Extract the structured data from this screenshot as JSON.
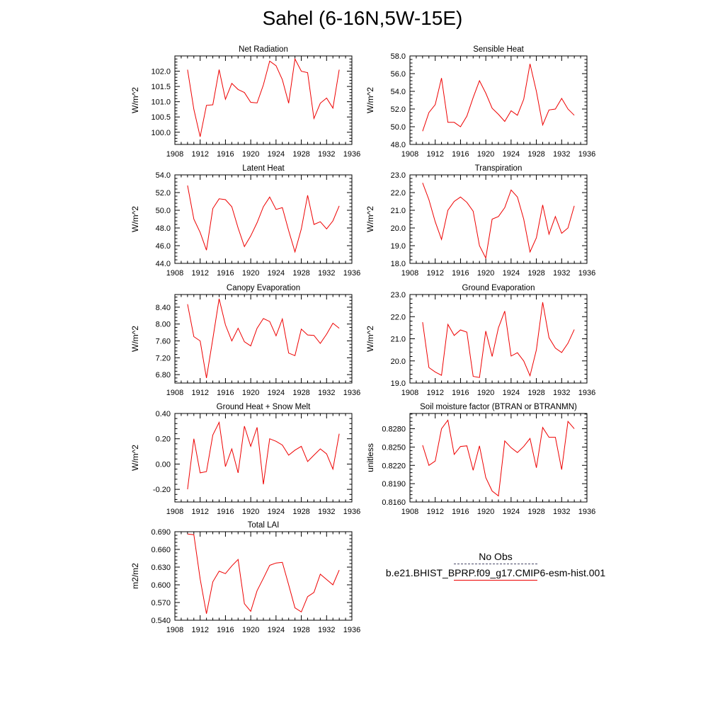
{
  "figure": {
    "title": "Sahel (6-16N,5W-15E)"
  },
  "legend": {
    "obs_label": "No Obs",
    "model_label": "b.e21.BHIST_BPRP.f09_g17.CMIP6-esm-hist.001",
    "model_color": "#ee0000"
  },
  "chart_data": [
    {
      "type": "line",
      "title": "Net Radiation",
      "ylabel": "W/m^2",
      "xlim": [
        1908,
        1936
      ],
      "ylim": [
        99.6,
        102.5
      ],
      "xticks": [
        1908,
        1912,
        1916,
        1920,
        1924,
        1928,
        1932,
        1936
      ],
      "yticks": [
        100.0,
        100.5,
        101.0,
        101.5,
        102.0
      ],
      "ytick_labels": [
        "100.0",
        "100.5",
        "101.0",
        "101.5",
        "102.0"
      ],
      "series": [
        {
          "x": [
            1910,
            1911,
            1912,
            1913,
            1914,
            1915,
            1916,
            1917,
            1918,
            1919,
            1920,
            1921,
            1922,
            1923,
            1924,
            1925,
            1926,
            1927,
            1928,
            1929,
            1930,
            1931,
            1932,
            1933,
            1934
          ],
          "y": [
            102.05,
            100.75,
            99.85,
            100.88,
            100.9,
            102.05,
            101.08,
            101.6,
            101.4,
            101.3,
            100.98,
            100.96,
            101.55,
            102.33,
            102.18,
            101.72,
            100.95,
            102.4,
            102.0,
            101.95,
            100.45,
            100.95,
            101.12,
            100.79,
            102.05
          ]
        }
      ]
    },
    {
      "type": "line",
      "title": "Sensible Heat",
      "ylabel": "W/m^2",
      "xlim": [
        1908,
        1936
      ],
      "ylim": [
        48.0,
        58.0
      ],
      "xticks": [
        1908,
        1912,
        1916,
        1920,
        1924,
        1928,
        1932,
        1936
      ],
      "yticks": [
        48.0,
        50.0,
        52.0,
        54.0,
        56.0,
        58.0
      ],
      "ytick_labels": [
        "48.0",
        "50.0",
        "52.0",
        "54.0",
        "56.0",
        "58.0"
      ],
      "series": [
        {
          "x": [
            1910,
            1911,
            1912,
            1913,
            1914,
            1915,
            1916,
            1917,
            1918,
            1919,
            1920,
            1921,
            1922,
            1923,
            1924,
            1925,
            1926,
            1927,
            1928,
            1929,
            1930,
            1931,
            1932,
            1933,
            1934
          ],
          "y": [
            49.5,
            51.6,
            52.5,
            55.5,
            50.5,
            50.5,
            50.0,
            51.2,
            53.3,
            55.2,
            53.8,
            52.1,
            51.4,
            50.6,
            51.8,
            51.3,
            53.1,
            57.1,
            54.0,
            50.2,
            51.9,
            52.0,
            53.2,
            52.0,
            51.3
          ]
        }
      ]
    },
    {
      "type": "line",
      "title": "Latent Heat",
      "ylabel": "W/m^2",
      "xlim": [
        1908,
        1936
      ],
      "ylim": [
        44.0,
        54.0
      ],
      "xticks": [
        1908,
        1912,
        1916,
        1920,
        1924,
        1928,
        1932,
        1936
      ],
      "yticks": [
        44.0,
        46.0,
        48.0,
        50.0,
        52.0,
        54.0
      ],
      "ytick_labels": [
        "44.0",
        "46.0",
        "48.0",
        "50.0",
        "52.0",
        "54.0"
      ],
      "series": [
        {
          "x": [
            1910,
            1911,
            1912,
            1913,
            1914,
            1915,
            1916,
            1917,
            1918,
            1919,
            1920,
            1921,
            1922,
            1923,
            1924,
            1925,
            1926,
            1927,
            1928,
            1929,
            1930,
            1931,
            1932,
            1933,
            1934
          ],
          "y": [
            52.8,
            49.0,
            47.5,
            45.5,
            50.2,
            51.3,
            51.2,
            50.4,
            48.0,
            45.9,
            47.1,
            48.6,
            50.4,
            51.5,
            50.1,
            50.3,
            47.7,
            45.3,
            47.9,
            51.7,
            48.4,
            48.7,
            47.9,
            48.8,
            50.5
          ]
        }
      ]
    },
    {
      "type": "line",
      "title": "Transpiration",
      "ylabel": "W/m^2",
      "xlim": [
        1908,
        1936
      ],
      "ylim": [
        18.0,
        23.0
      ],
      "xticks": [
        1908,
        1912,
        1916,
        1920,
        1924,
        1928,
        1932,
        1936
      ],
      "yticks": [
        18.0,
        19.0,
        20.0,
        21.0,
        22.0,
        23.0
      ],
      "ytick_labels": [
        "18.0",
        "19.0",
        "20.0",
        "21.0",
        "22.0",
        "23.0"
      ],
      "series": [
        {
          "x": [
            1910,
            1911,
            1912,
            1913,
            1914,
            1915,
            1916,
            1917,
            1918,
            1919,
            1920,
            1921,
            1922,
            1923,
            1924,
            1925,
            1926,
            1927,
            1928,
            1929,
            1930,
            1931,
            1932,
            1933,
            1934
          ],
          "y": [
            22.55,
            21.6,
            20.35,
            19.35,
            21.0,
            21.5,
            21.75,
            21.45,
            20.95,
            19.0,
            18.3,
            20.5,
            20.65,
            21.15,
            22.15,
            21.75,
            20.5,
            18.65,
            19.45,
            21.3,
            19.65,
            20.65,
            19.7,
            20.0,
            21.25
          ]
        }
      ]
    },
    {
      "type": "line",
      "title": "Canopy Evaporation",
      "ylabel": "W/m^2",
      "xlim": [
        1908,
        1936
      ],
      "ylim": [
        6.6,
        8.7
      ],
      "xticks": [
        1908,
        1912,
        1916,
        1920,
        1924,
        1928,
        1932,
        1936
      ],
      "yticks": [
        6.8,
        7.2,
        7.6,
        8.0,
        8.4
      ],
      "ytick_labels": [
        "6.80",
        "7.20",
        "7.60",
        "8.00",
        "8.40"
      ],
      "series": [
        {
          "x": [
            1910,
            1911,
            1912,
            1913,
            1914,
            1915,
            1916,
            1917,
            1918,
            1919,
            1920,
            1921,
            1922,
            1923,
            1924,
            1925,
            1926,
            1927,
            1928,
            1929,
            1930,
            1931,
            1932,
            1933,
            1934
          ],
          "y": [
            8.47,
            7.7,
            7.6,
            6.72,
            7.65,
            8.6,
            7.98,
            7.6,
            7.9,
            7.58,
            7.48,
            7.9,
            8.13,
            8.06,
            7.72,
            8.12,
            7.31,
            7.25,
            7.88,
            7.74,
            7.73,
            7.54,
            7.76,
            8.02,
            7.9
          ]
        }
      ]
    },
    {
      "type": "line",
      "title": "Ground Evaporation",
      "ylabel": "W/m^2",
      "xlim": [
        1908,
        1936
      ],
      "ylim": [
        19.0,
        23.0
      ],
      "xticks": [
        1908,
        1912,
        1916,
        1920,
        1924,
        1928,
        1932,
        1936
      ],
      "yticks": [
        19.0,
        20.0,
        21.0,
        22.0,
        23.0
      ],
      "ytick_labels": [
        "19.0",
        "20.0",
        "21.0",
        "22.0",
        "23.0"
      ],
      "series": [
        {
          "x": [
            1910,
            1911,
            1912,
            1913,
            1914,
            1915,
            1916,
            1917,
            1918,
            1919,
            1920,
            1921,
            1922,
            1923,
            1924,
            1925,
            1926,
            1927,
            1928,
            1929,
            1930,
            1931,
            1932,
            1933,
            1934
          ],
          "y": [
            21.75,
            19.7,
            19.5,
            19.35,
            21.65,
            21.15,
            21.4,
            21.3,
            19.3,
            19.25,
            21.35,
            20.2,
            21.5,
            22.25,
            20.22,
            20.37,
            20.0,
            19.33,
            20.5,
            22.65,
            21.05,
            20.58,
            20.38,
            20.8,
            21.42
          ]
        }
      ]
    },
    {
      "type": "line",
      "title": "Ground Heat + Snow Melt",
      "ylabel": "W/m^2",
      "xlim": [
        1908,
        1936
      ],
      "ylim": [
        -0.3,
        0.4
      ],
      "xticks": [
        1908,
        1912,
        1916,
        1920,
        1924,
        1928,
        1932,
        1936
      ],
      "yticks": [
        -0.2,
        0.0,
        0.2,
        0.4
      ],
      "ytick_labels": [
        "-0.20",
        "0.00",
        "0.20",
        "0.40"
      ],
      "series": [
        {
          "x": [
            1910,
            1911,
            1912,
            1913,
            1914,
            1915,
            1916,
            1917,
            1918,
            1919,
            1920,
            1921,
            1922,
            1923,
            1924,
            1925,
            1926,
            1927,
            1928,
            1929,
            1930,
            1931,
            1932,
            1933,
            1934
          ],
          "y": [
            -0.2,
            0.2,
            -0.07,
            -0.06,
            0.23,
            0.33,
            -0.02,
            0.12,
            -0.07,
            0.3,
            0.14,
            0.29,
            -0.16,
            0.2,
            0.18,
            0.15,
            0.07,
            0.11,
            0.14,
            0.02,
            0.07,
            0.12,
            0.08,
            -0.04,
            0.24
          ]
        }
      ]
    },
    {
      "type": "line",
      "title": "Soil moisture factor (BTRAN or BTRANMN)",
      "ylabel": "unitless",
      "xlim": [
        1908,
        1936
      ],
      "ylim": [
        0.816,
        0.8305
      ],
      "xticks": [
        1908,
        1912,
        1916,
        1920,
        1924,
        1928,
        1932,
        1936
      ],
      "yticks": [
        0.816,
        0.819,
        0.822,
        0.825,
        0.828
      ],
      "ytick_labels": [
        "0.8160",
        "0.8190",
        "0.8220",
        "0.8250",
        "0.8280"
      ],
      "series": [
        {
          "x": [
            1910,
            1911,
            1912,
            1913,
            1914,
            1915,
            1916,
            1917,
            1918,
            1919,
            1920,
            1921,
            1922,
            1923,
            1924,
            1925,
            1926,
            1927,
            1928,
            1929,
            1930,
            1931,
            1932,
            1933,
            1934
          ],
          "y": [
            0.8253,
            0.822,
            0.8227,
            0.828,
            0.8294,
            0.8238,
            0.8251,
            0.8252,
            0.8212,
            0.8252,
            0.82,
            0.8178,
            0.817,
            0.826,
            0.8249,
            0.8241,
            0.8251,
            0.8264,
            0.8216,
            0.8282,
            0.8266,
            0.8266,
            0.8213,
            0.8292,
            0.828
          ]
        }
      ]
    },
    {
      "type": "line",
      "title": "Total LAI",
      "ylabel": "m2/m2",
      "xlim": [
        1908,
        1936
      ],
      "ylim": [
        0.54,
        0.69
      ],
      "xticks": [
        1908,
        1912,
        1916,
        1920,
        1924,
        1928,
        1932,
        1936
      ],
      "yticks": [
        0.54,
        0.57,
        0.6,
        0.63,
        0.66,
        0.69
      ],
      "ytick_labels": [
        "0.540",
        "0.570",
        "0.600",
        "0.630",
        "0.660",
        "0.690"
      ],
      "series": [
        {
          "x": [
            1910,
            1911,
            1912,
            1913,
            1914,
            1915,
            1916,
            1917,
            1918,
            1919,
            1920,
            1921,
            1922,
            1923,
            1924,
            1925,
            1926,
            1927,
            1928,
            1929,
            1930,
            1931,
            1932,
            1933,
            1934
          ],
          "y": [
            0.686,
            0.685,
            0.61,
            0.551,
            0.605,
            0.623,
            0.619,
            0.632,
            0.643,
            0.568,
            0.555,
            0.59,
            0.611,
            0.633,
            0.637,
            0.638,
            0.6,
            0.561,
            0.554,
            0.58,
            0.587,
            0.618,
            0.609,
            0.6,
            0.625
          ]
        }
      ]
    }
  ]
}
